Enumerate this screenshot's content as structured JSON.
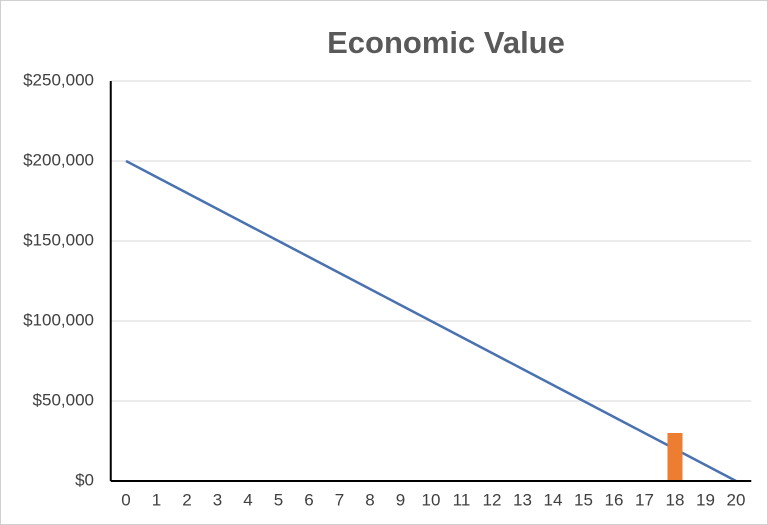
{
  "chart_data": {
    "type": "combo",
    "title": "Economic Value",
    "categories": [
      "0",
      "1",
      "2",
      "3",
      "4",
      "5",
      "6",
      "7",
      "8",
      "9",
      "10",
      "11",
      "12",
      "13",
      "14",
      "15",
      "16",
      "17",
      "18",
      "19",
      "20"
    ],
    "series": [
      {
        "type": "line",
        "color": "#4a72b0",
        "values": [
          200000,
          190000,
          180000,
          170000,
          160000,
          150000,
          140000,
          130000,
          120000,
          110000,
          100000,
          90000,
          80000,
          70000,
          60000,
          50000,
          40000,
          30000,
          20000,
          10000,
          0
        ]
      },
      {
        "type": "bar",
        "color": "#ed7d31",
        "values": [
          null,
          null,
          null,
          null,
          null,
          null,
          null,
          null,
          null,
          null,
          null,
          null,
          null,
          null,
          null,
          null,
          null,
          null,
          30000,
          null,
          null
        ]
      }
    ],
    "ylim": [
      0,
      250000
    ],
    "yticks": [
      {
        "value": 0,
        "label": "$0"
      },
      {
        "value": 50000,
        "label": "$50,000"
      },
      {
        "value": 100000,
        "label": "$100,000"
      },
      {
        "value": 150000,
        "label": "$150,000"
      },
      {
        "value": 200000,
        "label": "$200,000"
      },
      {
        "value": 250000,
        "label": "$250,000"
      }
    ],
    "grid": true
  }
}
